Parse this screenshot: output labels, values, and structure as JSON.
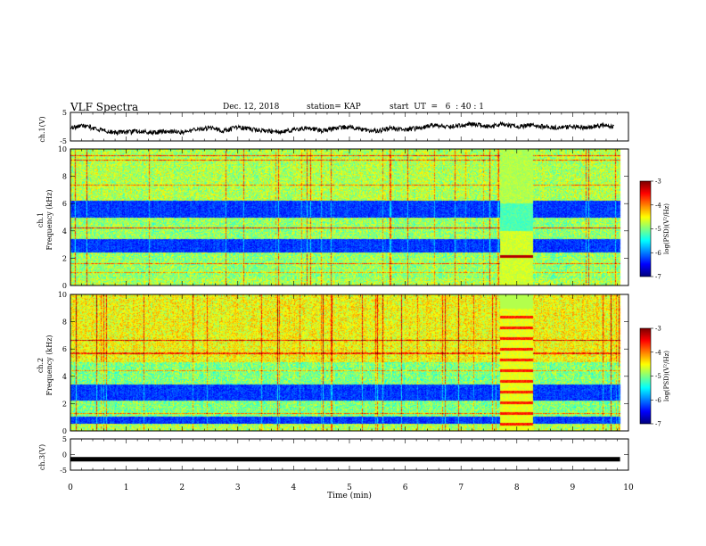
{
  "header": {
    "title": "VLF Spectra",
    "date": "Dec. 12, 2018",
    "station": "station= KAP",
    "start": "start  UT  =   6  : 40 : 1"
  },
  "chart_data": [
    {
      "type": "line",
      "panel": "ch1-waveform",
      "ylabel": "ch.1(V)",
      "ylim": [
        -5,
        5
      ],
      "yticks": [
        "5",
        "-5"
      ],
      "x": [
        0,
        0.25,
        0.5,
        0.75,
        1,
        1.25,
        1.5,
        1.75,
        2,
        2.25,
        2.5,
        2.75,
        3,
        3.25,
        3.5,
        3.75,
        4,
        4.25,
        4.5,
        4.75,
        5,
        5.25,
        5.5,
        5.75,
        6,
        6.25,
        6.5,
        6.75,
        7,
        7.25,
        7.5,
        7.75,
        8,
        8.25,
        8.5,
        8.75,
        9,
        9.25,
        9.5,
        9.75
      ],
      "values": [
        -0.5,
        0.5,
        -1,
        -2,
        -2,
        -1.5,
        -2,
        -1.5,
        -2,
        -1,
        -0.5,
        -1.5,
        0,
        -1,
        -1.5,
        -2,
        -1,
        -0.5,
        -1.5,
        -0.5,
        0,
        -1,
        -1.5,
        -0.5,
        -1,
        -0.5,
        0.5,
        0,
        0.5,
        1,
        0,
        1,
        0,
        0.5,
        0,
        -0.5,
        0,
        -0.5,
        0.5,
        0
      ]
    },
    {
      "type": "heatmap",
      "panel": "ch1-spectrogram",
      "ylabel": "ch.1 Frequency (kHz)",
      "ylim": [
        0,
        10
      ],
      "xlim": [
        0,
        10
      ],
      "yticks": [
        "0",
        "2",
        "4",
        "6",
        "8",
        "10"
      ],
      "colorbar": {
        "label": "log(PSD)(V²/Hz)",
        "range": [
          -7,
          -3
        ],
        "ticks": [
          "-3",
          "-4",
          "-5",
          "-6",
          "-7"
        ]
      },
      "dark_bands_khz": [
        [
          2.4,
          3.4
        ],
        [
          5.0,
          6.2
        ]
      ],
      "anomaly_min": [
        7.7,
        8.3
      ]
    },
    {
      "type": "heatmap",
      "panel": "ch2-spectrogram",
      "ylabel": "ch.2 Frequency (kHz)",
      "ylim": [
        0,
        10
      ],
      "xlim": [
        0,
        10
      ],
      "yticks": [
        "0",
        "2",
        "4",
        "6",
        "8",
        "10"
      ],
      "colorbar": {
        "label": "log(PSD)(V²/Hz)",
        "range": [
          -7,
          -3
        ],
        "ticks": [
          "-3",
          "-4",
          "-5",
          "-6",
          "-7"
        ]
      },
      "dark_bands_khz": [
        [
          2.2,
          3.4
        ],
        [
          0.5,
          1.0
        ]
      ],
      "anomaly_min": [
        7.7,
        8.3
      ]
    },
    {
      "type": "line",
      "panel": "ch3-waveform",
      "ylabel": "ch.3(V)",
      "ylim": [
        -5,
        5
      ],
      "yticks": [
        "5",
        "0",
        "-5"
      ],
      "x": [
        0,
        9.85
      ],
      "values": [
        -1.5,
        -1.5
      ]
    }
  ],
  "xaxis": {
    "label": "Time  (min)",
    "ticks": [
      "0",
      "1",
      "2",
      "3",
      "4",
      "5",
      "6",
      "7",
      "8",
      "9",
      "10"
    ],
    "range": [
      0,
      10
    ]
  },
  "colors": {
    "jet": [
      "#00007f",
      "#0000ff",
      "#00bfff",
      "#00ffbf",
      "#80ff40",
      "#ffff00",
      "#ff8000",
      "#ff0000",
      "#800000"
    ]
  }
}
